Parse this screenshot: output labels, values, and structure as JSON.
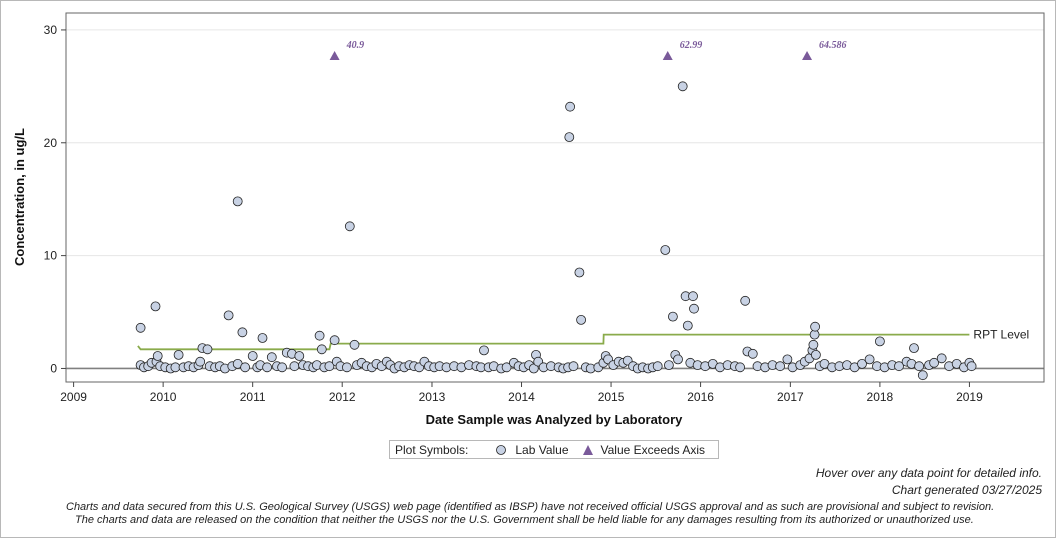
{
  "chart_data": {
    "type": "scatter",
    "title": "",
    "xlabel": "Date Sample was Analyzed by Laboratory",
    "ylabel": "Concentration, in ug/L",
    "xlim": [
      "2008-12-01",
      "2019-11-01"
    ],
    "ylim": [
      -1.2,
      31.5
    ],
    "x_ticks": [
      "2009",
      "2010",
      "2011",
      "2012",
      "2013",
      "2014",
      "2015",
      "2016",
      "2017",
      "2018",
      "2019"
    ],
    "y_ticks": [
      0,
      10,
      20,
      30
    ],
    "grid": "horizontal",
    "series": [
      {
        "name": "Lab Value",
        "marker": "circle",
        "color": "#c8d2e4",
        "points": [
          [
            "2009-10-01",
            3.6
          ],
          [
            "2009-10-01",
            0.3
          ],
          [
            "2009-10-15",
            0.1
          ],
          [
            "2009-11-01",
            0.2
          ],
          [
            "2009-11-15",
            0.5
          ],
          [
            "2009-12-01",
            5.5
          ],
          [
            "2009-12-05",
            0.6
          ],
          [
            "2009-12-10",
            1.1
          ],
          [
            "2009-12-20",
            0.2
          ],
          [
            "2010-01-10",
            0.1
          ],
          [
            "2010-02-01",
            0.0
          ],
          [
            "2010-02-20",
            0.1
          ],
          [
            "2010-03-05",
            1.2
          ],
          [
            "2010-03-25",
            0.1
          ],
          [
            "2010-04-15",
            0.2
          ],
          [
            "2010-05-05",
            0.1
          ],
          [
            "2010-05-25",
            0.3
          ],
          [
            "2010-06-01",
            0.6
          ],
          [
            "2010-06-10",
            1.8
          ],
          [
            "2010-07-01",
            1.7
          ],
          [
            "2010-07-10",
            0.2
          ],
          [
            "2010-08-01",
            0.1
          ],
          [
            "2010-08-20",
            0.2
          ],
          [
            "2010-09-10",
            0.0
          ],
          [
            "2010-09-25",
            4.7
          ],
          [
            "2010-10-10",
            0.2
          ],
          [
            "2010-11-01",
            0.4
          ],
          [
            "2010-11-01",
            14.8
          ],
          [
            "2010-11-20",
            3.2
          ],
          [
            "2010-12-01",
            0.1
          ],
          [
            "2011-01-01",
            1.1
          ],
          [
            "2011-01-20",
            0.1
          ],
          [
            "2011-02-01",
            0.3
          ],
          [
            "2011-02-10",
            2.7
          ],
          [
            "2011-03-01",
            0.1
          ],
          [
            "2011-03-20",
            1.0
          ],
          [
            "2011-04-10",
            0.2
          ],
          [
            "2011-05-01",
            0.1
          ],
          [
            "2011-05-20",
            1.4
          ],
          [
            "2011-06-10",
            1.3
          ],
          [
            "2011-06-20",
            0.2
          ],
          [
            "2011-07-10",
            1.1
          ],
          [
            "2011-07-25",
            0.3
          ],
          [
            "2011-08-15",
            0.2
          ],
          [
            "2011-09-05",
            0.1
          ],
          [
            "2011-09-20",
            0.3
          ],
          [
            "2011-10-01",
            2.9
          ],
          [
            "2011-10-10",
            1.7
          ],
          [
            "2011-10-20",
            0.1
          ],
          [
            "2011-11-10",
            0.2
          ],
          [
            "2011-12-01",
            2.5
          ],
          [
            "2011-12-10",
            0.6
          ],
          [
            "2011-12-25",
            0.2
          ],
          [
            "2012-01-20",
            0.1
          ],
          [
            "2012-02-01",
            12.6
          ],
          [
            "2012-02-20",
            2.1
          ],
          [
            "2012-03-01",
            0.3
          ],
          [
            "2012-03-20",
            0.5
          ],
          [
            "2012-04-10",
            0.2
          ],
          [
            "2012-05-01",
            0.1
          ],
          [
            "2012-05-20",
            0.4
          ],
          [
            "2012-06-10",
            0.2
          ],
          [
            "2012-07-01",
            0.6
          ],
          [
            "2012-07-15",
            0.3
          ],
          [
            "2012-08-01",
            0.0
          ],
          [
            "2012-08-20",
            0.2
          ],
          [
            "2012-09-10",
            0.1
          ],
          [
            "2012-10-01",
            0.3
          ],
          [
            "2012-10-20",
            0.2
          ],
          [
            "2012-11-10",
            0.1
          ],
          [
            "2012-12-01",
            0.6
          ],
          [
            "2012-12-20",
            0.2
          ],
          [
            "2013-01-10",
            0.1
          ],
          [
            "2013-02-01",
            0.2
          ],
          [
            "2013-03-01",
            0.1
          ],
          [
            "2013-04-01",
            0.2
          ],
          [
            "2013-05-01",
            0.1
          ],
          [
            "2013-06-01",
            0.3
          ],
          [
            "2013-07-01",
            0.2
          ],
          [
            "2013-07-20",
            0.1
          ],
          [
            "2013-08-01",
            1.6
          ],
          [
            "2013-08-20",
            0.1
          ],
          [
            "2013-09-10",
            0.2
          ],
          [
            "2013-10-10",
            0.0
          ],
          [
            "2013-11-01",
            0.1
          ],
          [
            "2013-12-01",
            0.5
          ],
          [
            "2013-12-20",
            0.2
          ],
          [
            "2014-01-10",
            0.1
          ],
          [
            "2014-02-01",
            0.3
          ],
          [
            "2014-02-20",
            0.0
          ],
          [
            "2014-03-01",
            1.2
          ],
          [
            "2014-03-10",
            0.6
          ],
          [
            "2014-04-01",
            0.1
          ],
          [
            "2014-05-01",
            0.2
          ],
          [
            "2014-06-01",
            0.1
          ],
          [
            "2014-06-20",
            0.0
          ],
          [
            "2014-07-10",
            0.1
          ],
          [
            "2014-07-15",
            20.5
          ],
          [
            "2014-07-18",
            23.2
          ],
          [
            "2014-08-01",
            0.2
          ],
          [
            "2014-08-25",
            8.5
          ],
          [
            "2014-09-01",
            4.3
          ],
          [
            "2014-09-20",
            0.1
          ],
          [
            "2014-10-10",
            0.0
          ],
          [
            "2014-11-10",
            0.1
          ],
          [
            "2014-12-01",
            0.5
          ],
          [
            "2014-12-10",
            1.1
          ],
          [
            "2014-12-20",
            0.8
          ],
          [
            "2015-01-10",
            0.3
          ],
          [
            "2015-02-01",
            0.6
          ],
          [
            "2015-02-20",
            0.5
          ],
          [
            "2015-03-10",
            0.7
          ],
          [
            "2015-04-01",
            0.2
          ],
          [
            "2015-04-20",
            0.0
          ],
          [
            "2015-05-10",
            0.1
          ],
          [
            "2015-06-01",
            0.0
          ],
          [
            "2015-06-20",
            0.1
          ],
          [
            "2015-07-10",
            0.2
          ],
          [
            "2015-08-10",
            10.5
          ],
          [
            "2015-08-25",
            0.3
          ],
          [
            "2015-09-10",
            4.6
          ],
          [
            "2015-09-20",
            1.2
          ],
          [
            "2015-10-01",
            0.8
          ],
          [
            "2015-10-20",
            25.0
          ],
          [
            "2015-11-01",
            6.4
          ],
          [
            "2015-11-10",
            3.8
          ],
          [
            "2015-11-20",
            0.5
          ],
          [
            "2015-12-01",
            6.4
          ],
          [
            "2015-12-05",
            5.3
          ],
          [
            "2015-12-20",
            0.3
          ],
          [
            "2016-01-20",
            0.2
          ],
          [
            "2016-02-20",
            0.4
          ],
          [
            "2016-03-20",
            0.1
          ],
          [
            "2016-04-20",
            0.3
          ],
          [
            "2016-05-20",
            0.2
          ],
          [
            "2016-06-10",
            0.1
          ],
          [
            "2016-07-01",
            6.0
          ],
          [
            "2016-07-10",
            1.5
          ],
          [
            "2016-08-01",
            1.3
          ],
          [
            "2016-08-20",
            0.2
          ],
          [
            "2016-09-20",
            0.1
          ],
          [
            "2016-10-20",
            0.3
          ],
          [
            "2016-11-20",
            0.2
          ],
          [
            "2016-12-20",
            0.8
          ],
          [
            "2017-01-10",
            0.1
          ],
          [
            "2017-02-10",
            0.3
          ],
          [
            "2017-03-01",
            0.6
          ],
          [
            "2017-03-20",
            0.9
          ],
          [
            "2017-04-01",
            1.6
          ],
          [
            "2017-04-05",
            2.1
          ],
          [
            "2017-04-10",
            3.0
          ],
          [
            "2017-04-12",
            3.7
          ],
          [
            "2017-04-15",
            1.2
          ],
          [
            "2017-05-01",
            0.2
          ],
          [
            "2017-05-20",
            0.4
          ],
          [
            "2017-06-20",
            0.1
          ],
          [
            "2017-07-20",
            0.2
          ],
          [
            "2017-08-20",
            0.3
          ],
          [
            "2017-09-20",
            0.1
          ],
          [
            "2017-10-20",
            0.4
          ],
          [
            "2017-11-20",
            0.8
          ],
          [
            "2017-12-20",
            0.2
          ],
          [
            "2018-01-01",
            2.4
          ],
          [
            "2018-01-20",
            0.1
          ],
          [
            "2018-02-20",
            0.3
          ],
          [
            "2018-03-20",
            0.2
          ],
          [
            "2018-04-20",
            0.6
          ],
          [
            "2018-05-10",
            0.4
          ],
          [
            "2018-05-20",
            1.8
          ],
          [
            "2018-06-10",
            0.2
          ],
          [
            "2018-06-25",
            -0.6
          ],
          [
            "2018-07-20",
            0.3
          ],
          [
            "2018-08-10",
            0.5
          ],
          [
            "2018-09-10",
            0.9
          ],
          [
            "2018-10-10",
            0.2
          ],
          [
            "2018-11-10",
            0.4
          ],
          [
            "2018-12-10",
            0.1
          ],
          [
            "2019-01-01",
            0.5
          ],
          [
            "2019-01-10",
            0.2
          ]
        ]
      },
      {
        "name": "Value Exceeds Axis",
        "marker": "triangle",
        "color": "#7a5a9a",
        "points": [
          {
            "x": "2011-12-01",
            "value": 40.9,
            "label": "40.9"
          },
          {
            "x": "2015-08-20",
            "value": 62.99,
            "label": "62.99"
          },
          {
            "x": "2017-03-10",
            "value": 64.586,
            "label": "64.586"
          }
        ]
      }
    ],
    "rpt_level": {
      "name": "RPT Level",
      "color": "#8aab4b",
      "points": [
        [
          "2009-09-20",
          2.0
        ],
        [
          "2009-10-01",
          1.7
        ],
        [
          "2011-11-10",
          1.7
        ],
        [
          "2011-11-15",
          2.2
        ],
        [
          "2014-12-01",
          2.2
        ],
        [
          "2014-12-02",
          3.0
        ],
        [
          "2019-01-01",
          3.0
        ]
      ]
    },
    "legend": {
      "position": "bottom",
      "title": "Plot Symbols:",
      "items": [
        "Lab Value",
        "Value Exceeds Axis"
      ]
    }
  },
  "footer": {
    "hover_note": "Hover over any data point for detailed info.",
    "generated": "Chart generated 03/27/2025",
    "disclaimer_1": "Charts and data secured from this U.S. Geological Survey (USGS) web page (identified as IBSP) have not received official USGS approval and as such are provisional and subject to revision.",
    "disclaimer_2": "The charts and data are released on the condition that neither the USGS nor the U.S. Government shall be held liable for any damages resulting from its authorized or unauthorized use."
  }
}
